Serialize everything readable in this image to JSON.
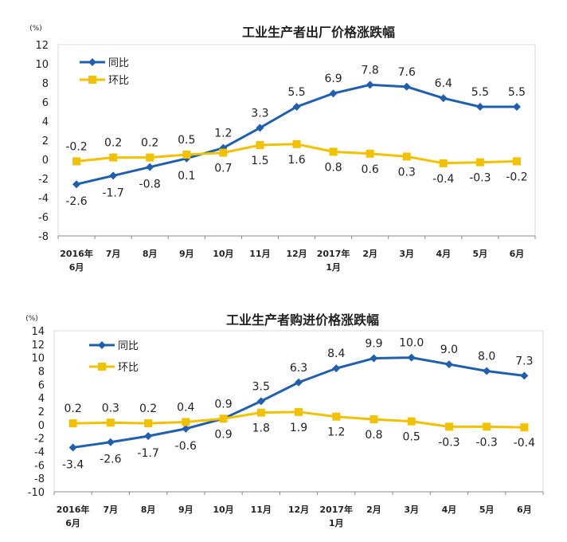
{
  "chart_data": [
    {
      "type": "line",
      "title": "工业生产者出厂价格涨跌幅",
      "ylabel": "(%)",
      "ylim": [
        -8,
        12
      ],
      "ystep": 2,
      "grid": false,
      "legend": "top-left",
      "categories": [
        [
          "2016年",
          "6月"
        ],
        [
          "7月"
        ],
        [
          "8月"
        ],
        [
          "9月"
        ],
        [
          "10月"
        ],
        [
          "11月"
        ],
        [
          "12月"
        ],
        [
          "2017年",
          "1月"
        ],
        [
          "2月"
        ],
        [
          "3月"
        ],
        [
          "4月"
        ],
        [
          "5月"
        ],
        [
          "6月"
        ]
      ],
      "series": [
        {
          "name": "同比",
          "color": "#1f5fb0",
          "marker": "diamond",
          "values": [
            -2.6,
            -1.7,
            -0.8,
            0.1,
            1.2,
            3.3,
            5.5,
            6.9,
            7.8,
            7.6,
            6.4,
            5.5,
            5.5
          ]
        },
        {
          "name": "环比",
          "color": "#f2c200",
          "marker": "square",
          "values": [
            -0.2,
            0.2,
            0.2,
            0.5,
            0.7,
            1.5,
            1.6,
            0.8,
            0.6,
            0.3,
            -0.4,
            -0.3,
            -0.2
          ]
        }
      ]
    },
    {
      "type": "line",
      "title": "工业生产者购进价格涨跌幅",
      "ylabel": "(%)",
      "ylim": [
        -10,
        14
      ],
      "ystep": 2,
      "grid": false,
      "legend": "top-left",
      "categories": [
        [
          "2016年",
          "6月"
        ],
        [
          "7月"
        ],
        [
          "8月"
        ],
        [
          "9月"
        ],
        [
          "10月"
        ],
        [
          "11月"
        ],
        [
          "12月"
        ],
        [
          "2017年",
          "1月"
        ],
        [
          "2月"
        ],
        [
          "3月"
        ],
        [
          "4月"
        ],
        [
          "5月"
        ],
        [
          "6月"
        ]
      ],
      "series": [
        {
          "name": "同比",
          "color": "#1f5fb0",
          "marker": "diamond",
          "values": [
            -3.4,
            -2.6,
            -1.7,
            -0.6,
            0.9,
            3.5,
            6.3,
            8.4,
            9.9,
            10.0,
            9.0,
            8.0,
            7.3
          ]
        },
        {
          "name": "环比",
          "color": "#f2c200",
          "marker": "square",
          "values": [
            0.2,
            0.3,
            0.2,
            0.4,
            0.9,
            1.8,
            1.9,
            1.2,
            0.8,
            0.5,
            -0.3,
            -0.3,
            -0.4
          ]
        }
      ]
    }
  ]
}
